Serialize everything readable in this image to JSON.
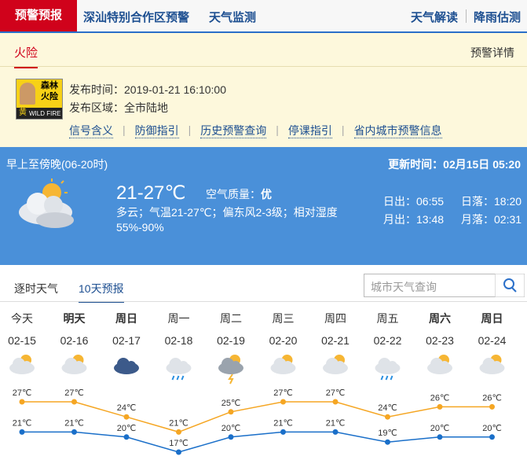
{
  "nav": {
    "active": "预警预报",
    "left": [
      "深汕特别合作区预警",
      "天气监测"
    ],
    "right": [
      "天气解读",
      "降雨估测"
    ]
  },
  "warning": {
    "tab": "火险",
    "details": "预警详情",
    "icon_lines": [
      "森林",
      "火险"
    ],
    "icon_level": "黄",
    "icon_en": "WILD FIRE",
    "time_label": "发布时间：",
    "time": "2019-01-21 16:10:00",
    "area_label": "发布区域：",
    "area": "全市陆地",
    "links": [
      "信号含义",
      "防御指引",
      "历史预警查询",
      "停课指引",
      "省内城市预警信息"
    ]
  },
  "current": {
    "period": "早上至傍晚(06-20时)",
    "update_label": "更新时间：",
    "update": "02月15日 05:20",
    "temp": "21-27℃",
    "aqi_label": "空气质量：",
    "aqi": "优",
    "desc": "多云；气温21-27℃；偏东风2-3级；相对湿度55%-90%",
    "sunrise_label": "日出：",
    "sunrise": "06:55",
    "sunset_label": "日落：",
    "sunset": "18:20",
    "moonrise_label": "月出：",
    "moonrise": "13:48",
    "moonset_label": "月落：",
    "moonset": "02:31"
  },
  "tabs": [
    "逐时天气",
    "10天预报"
  ],
  "active_tab": 1,
  "search_placeholder": "城市天气查询",
  "forecast": {
    "weekdays": [
      "今天",
      "明天",
      "周日",
      "周一",
      "周二",
      "周三",
      "周四",
      "周五",
      "周六",
      "周日"
    ],
    "bold": [
      false,
      true,
      true,
      false,
      false,
      false,
      false,
      false,
      true,
      true
    ]
  },
  "chart_data": {
    "type": "line",
    "categories": [
      "02-15",
      "02-16",
      "02-17",
      "02-18",
      "02-19",
      "02-20",
      "02-21",
      "02-22",
      "02-23",
      "02-24"
    ],
    "series": [
      {
        "color": "#f5a623",
        "values": [
          27,
          27,
          24,
          21,
          25,
          27,
          27,
          24,
          26,
          26
        ],
        "value_labels": [
          "27℃",
          "27℃",
          "24℃",
          "21℃",
          "25℃",
          "27℃",
          "27℃",
          "24℃",
          "26℃",
          "26℃"
        ]
      },
      {
        "color": "#1a6fc9",
        "values": [
          21,
          21,
          20,
          17,
          20,
          21,
          21,
          19,
          20,
          20
        ],
        "value_labels": [
          "21℃",
          "21℃",
          "20℃",
          "17℃",
          "20℃",
          "21℃",
          "21℃",
          "19℃",
          "20℃",
          "20℃"
        ]
      }
    ]
  }
}
